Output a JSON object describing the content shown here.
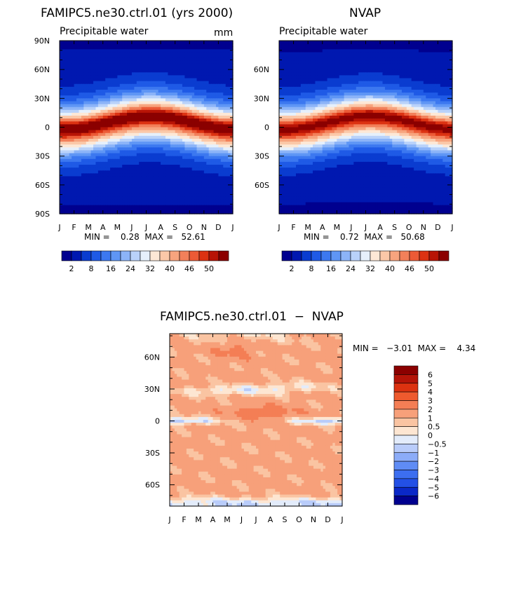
{
  "palette_main": [
    "#00008f",
    "#0018b0",
    "#0a3cd0",
    "#1f5ae6",
    "#3c78f0",
    "#5f96f5",
    "#8cb4f8",
    "#b9d2fa",
    "#e6f0fb",
    "#fde8d6",
    "#fbc8a8",
    "#f7a47e",
    "#f2805a",
    "#ec5a36",
    "#dc3212",
    "#b81406",
    "#8b0000"
  ],
  "palette_diff": [
    "#00008f",
    "#0a28c8",
    "#2350e6",
    "#3c6ef0",
    "#5f8cf5",
    "#8cacf8",
    "#b9ccfa",
    "#e3ecfb",
    "#fde6d2",
    "#fac4a2",
    "#f7a07a",
    "#f47e55",
    "#ee5a2e",
    "#dc3210",
    "#b41408",
    "#8b0000"
  ],
  "months": [
    "J",
    "F",
    "M",
    "A",
    "M",
    "J",
    "J",
    "A",
    "S",
    "O",
    "N",
    "D",
    "J"
  ],
  "lat_labels_full": [
    "90N",
    "60N",
    "30N",
    "0",
    "30S",
    "60S",
    "90S"
  ],
  "lat_labels_inner": [
    "60N",
    "30N",
    "0",
    "30S",
    "60S"
  ],
  "main_colorbar_labels": [
    "2",
    "8",
    "16",
    "24",
    "32",
    "40",
    "46",
    "50"
  ],
  "diff_colorbar_labels": [
    "6",
    "5",
    "4",
    "3",
    "2",
    "1",
    "0.5",
    "0",
    "−0.5",
    "−1",
    "−2",
    "−3",
    "−4",
    "−5",
    "−6"
  ],
  "chart_data": [
    {
      "type": "heatmap",
      "title": "FAMIPC5.ne30.ctrl.01 (yrs 2000)",
      "subtitle": "Precipitable water",
      "units": "mm",
      "x": "month (J–J)",
      "y": "latitude (90S–90N)",
      "min_max_text": "MIN =    0.28  MAX =   52.61",
      "min": 0.28,
      "max": 52.61,
      "levels": [
        2,
        5,
        8,
        12,
        16,
        20,
        24,
        28,
        32,
        36,
        40,
        43,
        46,
        48,
        50,
        52
      ]
    },
    {
      "type": "heatmap",
      "title": "NVAP",
      "subtitle": "Precipitable water",
      "min_max_text": "MIN =    0.72  MAX =   50.68",
      "min": 0.72,
      "max": 50.68,
      "levels": [
        2,
        5,
        8,
        12,
        16,
        20,
        24,
        28,
        32,
        36,
        40,
        43,
        46,
        48,
        50,
        52
      ]
    },
    {
      "type": "heatmap",
      "title": "FAMIPC5.ne30.ctrl.01  −  NVAP",
      "min_max_text": "MIN =   −3.01  MAX =    4.34",
      "min": -3.01,
      "max": 4.34,
      "levels": [
        -6,
        -5,
        -4,
        -3,
        -2,
        -1,
        -0.5,
        0,
        0.5,
        1,
        2,
        3,
        4,
        5,
        6
      ]
    }
  ]
}
